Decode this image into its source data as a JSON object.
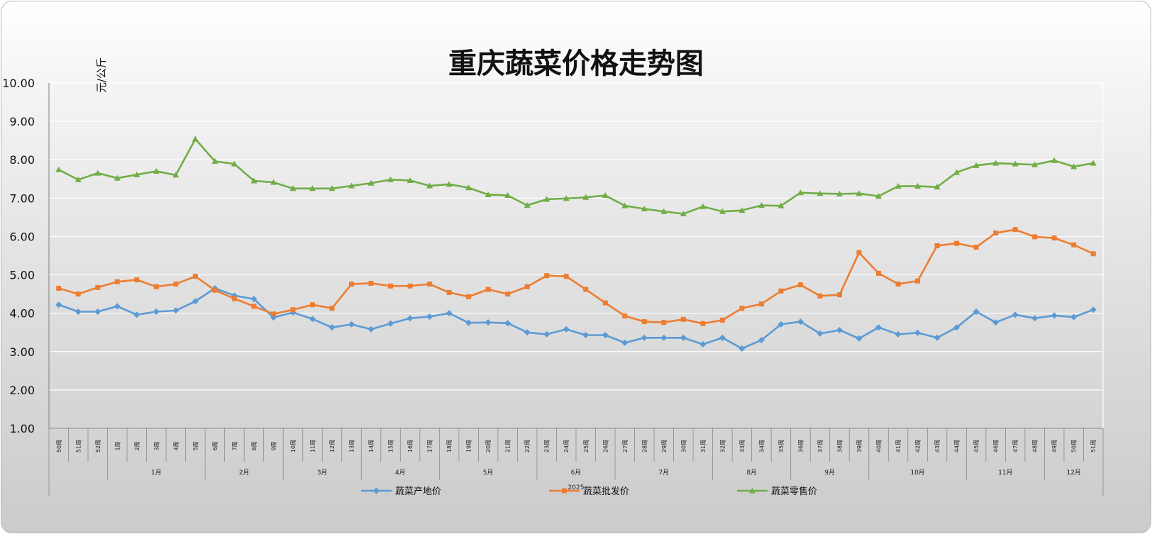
{
  "chart_data": {
    "type": "line",
    "title": "重庆蔬菜价格走势图",
    "ylabel": "元/公斤",
    "ylim": [
      1.0,
      10.0
    ],
    "yticks": [
      "1.00",
      "2.00",
      "3.00",
      "4.00",
      "5.00",
      "6.00",
      "7.00",
      "8.00",
      "9.00",
      "10.00"
    ],
    "grid": true,
    "legend": "bottom",
    "year_label": "2025",
    "categories": [
      "50周",
      "51周",
      "52周",
      "1周",
      "2周",
      "3周",
      "4周",
      "5周",
      "6周",
      "7周",
      "8周",
      "9周",
      "10周",
      "11周",
      "12周",
      "13周",
      "14周",
      "15周",
      "16周",
      "17周",
      "18周",
      "19周",
      "20周",
      "21周",
      "22周",
      "23周",
      "24周",
      "25周",
      "26周",
      "27周",
      "28周",
      "29周",
      "30周",
      "31周",
      "32周",
      "33周",
      "34周",
      "35周",
      "36周",
      "37周",
      "38周",
      "39周",
      "40周",
      "41周",
      "42周",
      "43周",
      "44周",
      "45周",
      "46周",
      "47周",
      "48周",
      "49周",
      "50周",
      "51周"
    ],
    "months": [
      {
        "label": "",
        "start": 0,
        "end": 3
      },
      {
        "label": "1月",
        "start": 3,
        "end": 8
      },
      {
        "label": "2月",
        "start": 8,
        "end": 12
      },
      {
        "label": "3月",
        "start": 12,
        "end": 16
      },
      {
        "label": "4月",
        "start": 16,
        "end": 20
      },
      {
        "label": "5月",
        "start": 20,
        "end": 25
      },
      {
        "label": "6月",
        "start": 25,
        "end": 29
      },
      {
        "label": "7月",
        "start": 29,
        "end": 34
      },
      {
        "label": "8月",
        "start": 34,
        "end": 38
      },
      {
        "label": "9月",
        "start": 38,
        "end": 42
      },
      {
        "label": "10月",
        "start": 42,
        "end": 47
      },
      {
        "label": "11月",
        "start": 47,
        "end": 51
      },
      {
        "label": "12月",
        "start": 51,
        "end": 54
      }
    ],
    "series": [
      {
        "name": "蔬菜产地价",
        "color": "#5b9bd5",
        "marker": "diamond",
        "values": [
          4.22,
          4.04,
          4.04,
          4.18,
          3.96,
          4.04,
          4.07,
          4.31,
          4.65,
          4.46,
          4.37,
          3.89,
          4.02,
          3.85,
          3.63,
          3.71,
          3.58,
          3.73,
          3.87,
          3.91,
          4.0,
          3.75,
          3.76,
          3.74,
          3.5,
          3.45,
          3.58,
          3.43,
          3.43,
          3.23,
          3.36,
          3.36,
          3.36,
          3.19,
          3.36,
          3.08,
          3.3,
          3.71,
          3.78,
          3.47,
          3.56,
          3.34,
          3.63,
          3.45,
          3.49,
          3.36,
          3.63,
          4.04,
          3.76,
          3.96,
          3.87,
          3.94,
          3.9,
          4.09
        ]
      },
      {
        "name": "蔬菜批发价",
        "color": "#ed7d31",
        "marker": "square",
        "values": [
          4.65,
          4.5,
          4.67,
          4.82,
          4.87,
          4.69,
          4.76,
          4.96,
          4.6,
          4.38,
          4.18,
          3.98,
          4.09,
          4.22,
          4.13,
          4.76,
          4.78,
          4.71,
          4.71,
          4.76,
          4.54,
          4.43,
          4.62,
          4.5,
          4.69,
          4.98,
          4.96,
          4.62,
          4.27,
          3.93,
          3.78,
          3.76,
          3.84,
          3.73,
          3.82,
          4.13,
          4.24,
          4.58,
          4.74,
          4.45,
          4.48,
          5.58,
          5.04,
          4.76,
          4.84,
          5.76,
          5.82,
          5.72,
          6.09,
          6.18,
          5.99,
          5.96,
          5.78,
          5.55
        ]
      },
      {
        "name": "蔬菜零售价",
        "color": "#70ad47",
        "marker": "triangle",
        "values": [
          7.74,
          7.48,
          7.65,
          7.52,
          7.61,
          7.7,
          7.6,
          8.54,
          7.96,
          7.89,
          7.45,
          7.41,
          7.25,
          7.25,
          7.25,
          7.32,
          7.39,
          7.48,
          7.46,
          7.32,
          7.36,
          7.27,
          7.09,
          7.07,
          6.81,
          6.97,
          6.99,
          7.02,
          7.07,
          6.8,
          6.72,
          6.65,
          6.59,
          6.78,
          6.65,
          6.68,
          6.81,
          6.8,
          7.14,
          7.12,
          7.11,
          7.12,
          7.05,
          7.31,
          7.31,
          7.29,
          7.67,
          7.85,
          7.91,
          7.89,
          7.87,
          7.98,
          7.82,
          7.91
        ]
      }
    ]
  }
}
